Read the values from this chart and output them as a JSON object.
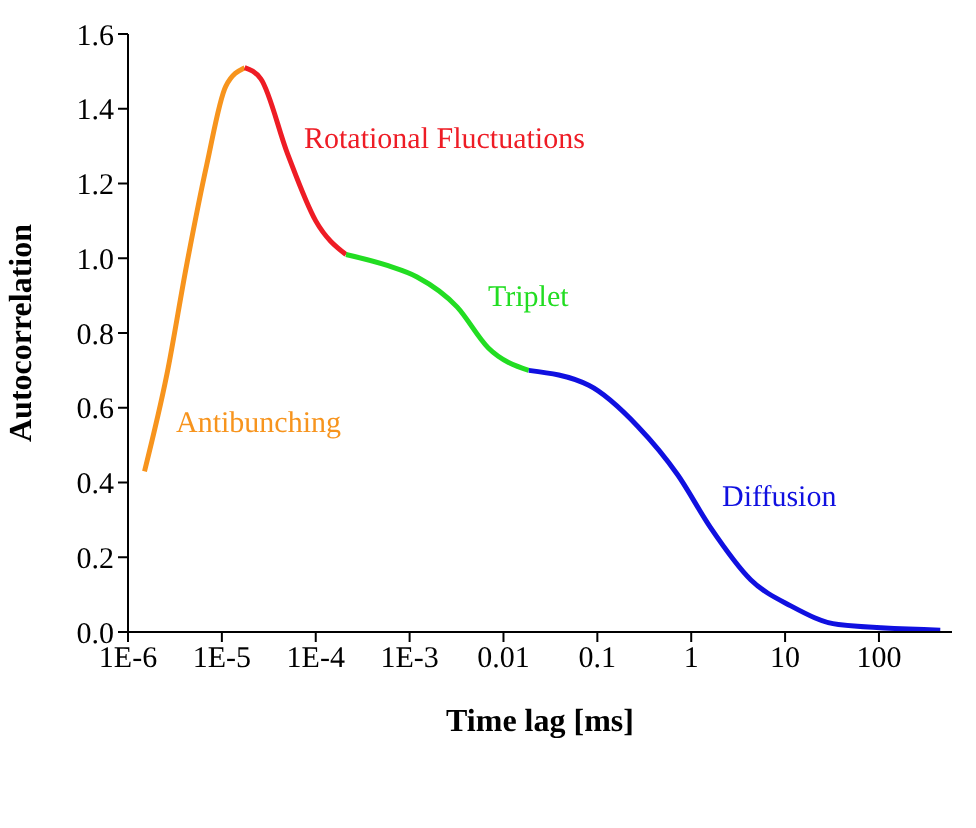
{
  "chart_data": {
    "type": "line",
    "xlabel": "Time lag [ms]",
    "ylabel": "Autocorrelation",
    "log": "x",
    "grid": false,
    "legend": false,
    "marker": "none",
    "line_style": "solid",
    "xlim": [
      1e-06,
      600
    ],
    "xticks": [
      {
        "value": 1e-06,
        "label": "1E-6"
      },
      {
        "value": 1e-05,
        "label": "1E-5"
      },
      {
        "value": 0.0001,
        "label": "1E-4"
      },
      {
        "value": 0.001,
        "label": "1E-3"
      },
      0.01,
      0.1,
      1,
      10,
      100
    ],
    "ylim": [
      0,
      1.6
    ],
    "yticks": [
      {
        "value": 0,
        "label": "0.0"
      },
      0.2,
      0.4,
      0.6,
      0.8,
      {
        "value": 1,
        "label": "1.0"
      },
      1.2,
      1.4,
      1.6
    ],
    "series": [
      {
        "name": "Antibunching",
        "color": "#f7941d",
        "x": [
          1.5e-06,
          2.6e-06,
          4.2e-06,
          6.9e-06,
          1.1e-05,
          1.75e-05
        ],
        "values": [
          0.43,
          0.69,
          0.98,
          1.25,
          1.46,
          1.51
        ]
      },
      {
        "name": "Rotational Fluctuations",
        "color": "#ee1c25",
        "x": [
          1.75e-05,
          2.6e-05,
          5e-05,
          0.0001,
          0.00021
        ],
        "values": [
          1.51,
          1.48,
          1.28,
          1.1,
          1.01
        ]
      },
      {
        "name": "Triplet",
        "color": "#22dd22",
        "x": [
          0.00021,
          0.00059,
          0.0012,
          0.0032,
          0.0069,
          0.0186
        ],
        "values": [
          1.01,
          0.98,
          0.95,
          0.87,
          0.76,
          0.7
        ]
      },
      {
        "name": "Diffusion",
        "color": "#1010e0",
        "x": [
          0.0186,
          0.081,
          0.27,
          0.72,
          1.6,
          4.3,
          11.5,
          37,
          450
        ],
        "values": [
          0.7,
          0.66,
          0.55,
          0.42,
          0.28,
          0.14,
          0.07,
          0.02,
          0.005
        ]
      }
    ]
  }
}
